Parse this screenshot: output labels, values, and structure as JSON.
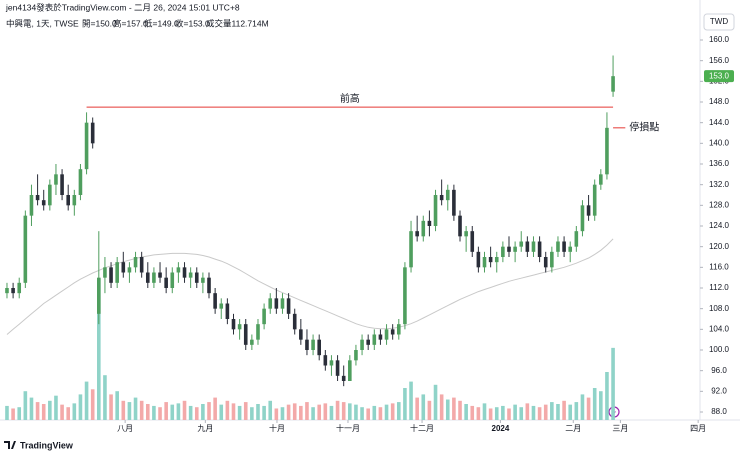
{
  "chart_data": {
    "type": "candlestick",
    "title": "jen4134發表於TradingView.com - 二月 26, 2024 15:01 UTC+8",
    "symbol": "中興電, 1天, TWSE",
    "ohlc_text": [
      "開=150.0",
      "高=157.0",
      "低=149.0",
      "收=153.0"
    ],
    "volume_text": "成交量112.714M",
    "currency": "TWD",
    "brand": "TradingView",
    "last_label": "153.0",
    "up_color": "#4f9e5e",
    "down_color": "#2a2e39",
    "volume_up_color": "#8fd3c8",
    "volume_down_color": "#f3a9a9",
    "ma_color": "#c9c9c9",
    "badge_color": "#4caf50",
    "open": [
      111,
      112,
      111,
      113,
      126,
      130,
      129,
      128,
      132,
      134,
      130,
      128,
      130,
      135,
      144,
      107,
      114,
      116,
      113,
      117,
      115,
      116,
      118,
      115,
      113,
      115,
      114,
      112,
      115,
      116,
      114,
      115,
      113,
      114,
      111,
      108,
      109,
      106,
      104,
      105,
      101,
      102,
      105,
      108,
      110,
      108,
      110,
      107,
      104,
      102,
      100,
      102,
      99,
      97,
      98,
      95,
      94,
      98,
      100,
      102,
      101,
      103,
      102,
      104,
      103,
      105,
      116,
      123,
      122,
      125,
      124,
      130,
      129,
      131,
      126,
      122,
      123,
      119,
      116,
      118,
      117,
      118,
      120,
      119,
      120,
      121,
      119,
      121,
      118,
      116,
      119,
      121,
      119,
      120,
      123,
      128,
      126,
      132,
      134,
      150
    ],
    "high": [
      113,
      113,
      114,
      127,
      132,
      134,
      131,
      133,
      136,
      135,
      132,
      131,
      136,
      146,
      145,
      123,
      118,
      117,
      118,
      119,
      117,
      119,
      119,
      117,
      116,
      117,
      116,
      116,
      117,
      117,
      116,
      116,
      115,
      115,
      112,
      110,
      110,
      107,
      106,
      106,
      103,
      106,
      109,
      111,
      112,
      111,
      111,
      108,
      106,
      104,
      103,
      103,
      100,
      99,
      99,
      97,
      99,
      101,
      103,
      103,
      104,
      104,
      105,
      105,
      106,
      117,
      125,
      126,
      126,
      127,
      131,
      133,
      132,
      132,
      127,
      124,
      124,
      120,
      119,
      120,
      119,
      121,
      122,
      121,
      123,
      122,
      122,
      122,
      119,
      120,
      122,
      122,
      121,
      124,
      129,
      130,
      133,
      135,
      146,
      157
    ],
    "low": [
      110,
      110,
      110,
      112,
      124,
      128,
      127,
      127,
      130,
      129,
      127,
      126,
      129,
      134,
      139,
      105,
      111,
      112,
      112,
      114,
      113,
      115,
      114,
      112,
      112,
      113,
      111,
      111,
      113,
      113,
      112,
      112,
      111,
      110,
      107,
      106,
      105,
      103,
      102,
      100,
      100,
      101,
      104,
      107,
      107,
      107,
      106,
      103,
      101,
      99,
      99,
      98,
      96,
      95,
      94,
      93,
      94,
      97,
      99,
      100,
      100,
      101,
      101,
      102,
      102,
      104,
      115,
      121,
      121,
      122,
      123,
      128,
      127,
      125,
      121,
      119,
      118,
      115,
      115,
      116,
      115,
      117,
      118,
      117,
      119,
      118,
      118,
      117,
      115,
      115,
      118,
      118,
      117,
      119,
      122,
      125,
      125,
      131,
      133,
      149
    ],
    "close": [
      112,
      111,
      113,
      126,
      130,
      129,
      128,
      132,
      134,
      130,
      128,
      130,
      135,
      144,
      140,
      114,
      116,
      113,
      117,
      115,
      116,
      118,
      115,
      113,
      115,
      114,
      112,
      115,
      116,
      114,
      115,
      113,
      114,
      111,
      108,
      109,
      106,
      104,
      105,
      101,
      102,
      105,
      108,
      110,
      108,
      110,
      107,
      104,
      102,
      100,
      102,
      99,
      97,
      98,
      95,
      94,
      98,
      100,
      102,
      101,
      103,
      102,
      104,
      103,
      105,
      116,
      123,
      122,
      125,
      124,
      130,
      129,
      131,
      126,
      122,
      123,
      119,
      116,
      118,
      117,
      118,
      120,
      119,
      120,
      121,
      119,
      121,
      118,
      116,
      119,
      121,
      119,
      120,
      123,
      128,
      126,
      132,
      134,
      143,
      153
    ],
    "volume": [
      22,
      18,
      20,
      45,
      35,
      28,
      25,
      30,
      38,
      24,
      20,
      26,
      40,
      60,
      48,
      220,
      70,
      40,
      45,
      30,
      28,
      35,
      30,
      25,
      22,
      20,
      28,
      24,
      26,
      30,
      22,
      20,
      25,
      28,
      35,
      24,
      30,
      26,
      22,
      28,
      20,
      25,
      22,
      30,
      18,
      20,
      24,
      26,
      22,
      28,
      20,
      24,
      26,
      22,
      30,
      28,
      26,
      24,
      20,
      18,
      22,
      20,
      24,
      26,
      28,
      50,
      60,
      35,
      40,
      30,
      55,
      40,
      32,
      35,
      30,
      25,
      22,
      20,
      26,
      18,
      20,
      22,
      18,
      24,
      20,
      26,
      22,
      20,
      24,
      28,
      25,
      30,
      24,
      28,
      40,
      35,
      50,
      45,
      75,
      112.714
    ],
    "ma": [
      103,
      104,
      105,
      106,
      107,
      108,
      109,
      109.8,
      110.6,
      111.4,
      112.2,
      113,
      113.7,
      114.3,
      114.9,
      115.4,
      115.9,
      116.3,
      116.7,
      117.1,
      117.4,
      117.7,
      118,
      118.2,
      118.4,
      118.5,
      118.6,
      118.7,
      118.7,
      118.7,
      118.6,
      118.5,
      118.3,
      118,
      117.6,
      117.2,
      116.7,
      116.1,
      115.5,
      114.8,
      114.1,
      113.4,
      112.8,
      112.2,
      111.6,
      111.1,
      110.6,
      110.1,
      109.6,
      109.1,
      108.6,
      108.1,
      107.6,
      107.1,
      106.6,
      106.1,
      105.6,
      105.1,
      104.7,
      104.4,
      104.2,
      104.1,
      104.1,
      104.2,
      104.4,
      104.7,
      105.1,
      105.6,
      106.2,
      106.8,
      107.4,
      108,
      108.6,
      109.2,
      109.8,
      110.3,
      110.8,
      111.3,
      111.7,
      112.1,
      112.5,
      112.9,
      113.3,
      113.6,
      113.9,
      114.2,
      114.5,
      114.8,
      115.1,
      115.4,
      115.7,
      116,
      116.4,
      116.8,
      117.3,
      117.8,
      118.5,
      119.3,
      120.3,
      121.5
    ],
    "xlim": [
      -1.14,
      113.2
    ],
    "xticks": [
      {
        "value": 19.3,
        "label": "八月"
      },
      {
        "value": 32.4,
        "label": "九月"
      },
      {
        "value": 44.1,
        "label": "十月"
      },
      {
        "value": 55.7,
        "label": "十一月"
      },
      {
        "value": 67.8,
        "label": "十二月"
      },
      {
        "value": 80.6,
        "label": "2024"
      },
      {
        "value": 92.5,
        "label": "二月"
      },
      {
        "value": 100.2,
        "label": "三月"
      },
      {
        "value": 112.9,
        "label": "四月"
      }
    ],
    "ylim": [
      88,
      160
    ],
    "yticks": [
      {
        "value": 88,
        "label": "88.0"
      },
      {
        "value": 92,
        "label": "92.0"
      },
      {
        "value": 96,
        "label": "96.0"
      },
      {
        "value": 100,
        "label": "100.0"
      },
      {
        "value": 104,
        "label": "104.0"
      },
      {
        "value": 108,
        "label": "108.0"
      },
      {
        "value": 112,
        "label": "112.0"
      },
      {
        "value": 116,
        "label": "116.0"
      },
      {
        "value": 120,
        "label": "120.0"
      },
      {
        "value": 124,
        "label": "124.0"
      },
      {
        "value": 128,
        "label": "128.0"
      },
      {
        "value": 132,
        "label": "132.0"
      },
      {
        "value": 136,
        "label": "136.0"
      },
      {
        "value": 140,
        "label": "140.0"
      },
      {
        "value": 144,
        "label": "144.0"
      },
      {
        "value": 148,
        "label": "148.0"
      },
      {
        "value": 152,
        "label": "152.0"
      },
      {
        "value": 156,
        "label": "156.0"
      },
      {
        "value": 160,
        "label": "160.0"
      }
    ],
    "annotations": [
      {
        "text": "前高",
        "value": 147,
        "color": "#e53935",
        "x": [
          13,
          99
        ]
      },
      {
        "text": "停損點",
        "value": 143,
        "color": "#e53935",
        "x": [
          99,
          101
        ]
      }
    ]
  }
}
